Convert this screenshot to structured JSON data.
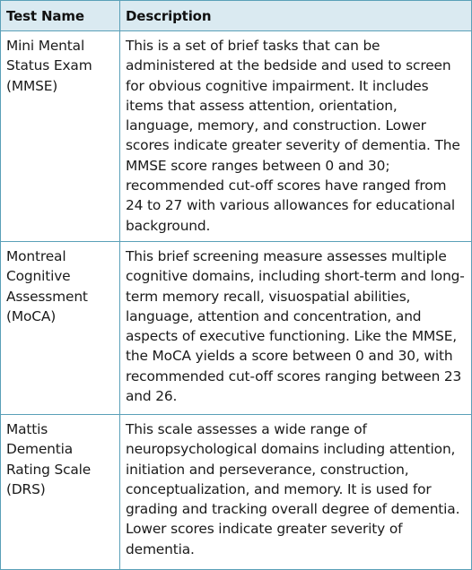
{
  "table": {
    "headers": {
      "name": "Test Name",
      "description": "Description"
    },
    "rows": [
      {
        "name": "Mini Mental Status Exam (MMSE)",
        "description": "This is a set of brief tasks that can be administered at the bedside and used to screen for obvious cognitive impairment. It includes items that assess attention, orientation, language, memory, and construction. Lower scores indicate greater severity of dementia. The MMSE score ranges between 0 and 30; recommended cut-off scores have ranged from 24 to 27 with various allowances for educational background."
      },
      {
        "name": "Montreal Cognitive Assessment (MoCA)",
        "description": "This brief screening measure assesses multiple cognitive domains, including short-term and long-term memory recall, visuospatial abilities, language, attention and concentration, and aspects of executive functioning. Like the MMSE, the MoCA yields a score between 0 and 30, with recommended cut-off scores ranging between 23 and 26."
      },
      {
        "name": "Mattis Dementia Rating Scale (DRS)",
        "description": "This scale assesses a wide range of neuropsychological domains including attention, initiation and perseverance, construction, conceptualization, and memory. It is used for grading and tracking overall degree of dementia. Lower scores indicate greater severity of dementia."
      }
    ]
  },
  "colors": {
    "header_background": "#daeaf1",
    "border": "#5aa0b8"
  }
}
